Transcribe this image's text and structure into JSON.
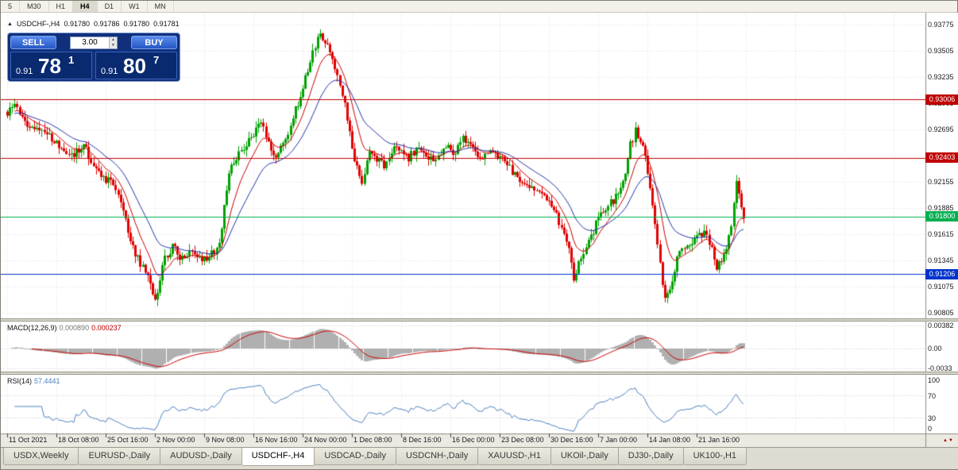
{
  "toolbar": {
    "timeframes": [
      "5",
      "M30",
      "H1",
      "H4",
      "D1",
      "W1",
      "MN"
    ],
    "active_timeframe": "H4"
  },
  "chart": {
    "symbol_label": "USDCHF-,H4",
    "ohlc": {
      "open": "0.91780",
      "high": "0.91786",
      "low": "0.91780",
      "close": "0.91781"
    },
    "trade_panel": {
      "sell_label": "SELL",
      "buy_label": "BUY",
      "volume": "3.00",
      "bid": {
        "prefix": "0.91",
        "big": "78",
        "sup": "1"
      },
      "ask": {
        "prefix": "0.91",
        "big": "80",
        "sup": "7"
      }
    },
    "price_axis": {
      "ticks": [
        "0.93775",
        "0.93505",
        "0.93235",
        "0.92965",
        "0.92695",
        "0.92425",
        "0.92155",
        "0.91885",
        "0.91615",
        "0.91345",
        "0.91075",
        "0.90805"
      ]
    },
    "levels": [
      {
        "label": "0.93006",
        "value": 0.93006,
        "color": "#c00000"
      },
      {
        "label": "0.92403",
        "value": 0.92403,
        "color": "#c00000"
      },
      {
        "label": "0.91800",
        "value": 0.918,
        "color": "#00b050"
      },
      {
        "label": "0.91206",
        "value": 0.91206,
        "color": "#0033cc"
      }
    ],
    "time_axis": {
      "labels": [
        "11 Oct 2021",
        "18 Oct 08:00",
        "25 Oct 16:00",
        "2 Nov 00:00",
        "9 Nov 08:00",
        "16 Nov 16:00",
        "24 Nov 00:00",
        "1 Dec 08:00",
        "8 Dec 16:00",
        "16 Dec 00:00",
        "23 Dec 08:00",
        "30 Dec 16:00",
        "7 Jan 00:00",
        "14 Jan 08:00",
        "21 Jan 16:00"
      ]
    }
  },
  "macd": {
    "name": "MACD(12,26,9)",
    "value1": "0.000890",
    "value2": "0.000237",
    "axis": [
      "0.00382",
      "0.00",
      "-0.0033"
    ]
  },
  "rsi": {
    "name": "RSI(14)",
    "value": "57.4441",
    "axis": [
      "100",
      "70",
      "30",
      "0"
    ]
  },
  "tabs": {
    "items": [
      "USDX,Weekly",
      "EURUSD-,Daily",
      "AUDUSD-,Daily",
      "USDCHF-,H4",
      "USDCAD-,Daily",
      "USDCNH-,Daily",
      "XAUUSD-,H1",
      "UKOil-,Daily",
      "DJ30-,Daily",
      "UK100-,H1"
    ],
    "active_index": 3
  },
  "colors": {
    "window_bg": "#ece9e2",
    "grid": "#e4e4e4",
    "candle_up": "#00a000",
    "candle_down": "#e00000",
    "ma_fast": "#cc0000",
    "ma_slow": "#2233aa",
    "macd_hist": "#b0b0b0",
    "macd_signal": "#cc0000",
    "rsi_line": "#4a7fc1",
    "separator": "#8f8c82"
  },
  "chart_data": {
    "type": "candlestick",
    "bars": 300,
    "last_close": 0.91781,
    "y_range": [
      0.9075,
      0.939
    ],
    "levels": [
      0.93006,
      0.92403,
      0.918,
      0.91206
    ],
    "indicators": {
      "overlay_ma": [
        10,
        24
      ],
      "macd": [
        12,
        26,
        9
      ],
      "rsi": 14
    },
    "price_path": [
      [
        0,
        0.9288
      ],
      [
        3,
        0.9296
      ],
      [
        8,
        0.9271
      ],
      [
        14,
        0.9266
      ],
      [
        18,
        0.9261
      ],
      [
        22,
        0.925
      ],
      [
        26,
        0.9242
      ],
      [
        31,
        0.9252
      ],
      [
        36,
        0.923
      ],
      [
        39,
        0.9221
      ],
      [
        43,
        0.9212
      ],
      [
        46,
        0.9198
      ],
      [
        50,
        0.9155
      ],
      [
        53,
        0.9136
      ],
      [
        57,
        0.9121
      ],
      [
        60,
        0.9092
      ],
      [
        63,
        0.9131
      ],
      [
        67,
        0.9149
      ],
      [
        71,
        0.9136
      ],
      [
        75,
        0.9148
      ],
      [
        79,
        0.9134
      ],
      [
        83,
        0.9142
      ],
      [
        86,
        0.9152
      ],
      [
        90,
        0.9228
      ],
      [
        95,
        0.925
      ],
      [
        99,
        0.9262
      ],
      [
        103,
        0.928
      ],
      [
        106,
        0.9256
      ],
      [
        109,
        0.9242
      ],
      [
        113,
        0.9258
      ],
      [
        117,
        0.929
      ],
      [
        120,
        0.9312
      ],
      [
        124,
        0.9348
      ],
      [
        127,
        0.9368
      ],
      [
        129,
        0.9361
      ],
      [
        131,
        0.9349
      ],
      [
        134,
        0.9322
      ],
      [
        137,
        0.9296
      ],
      [
        139,
        0.927
      ],
      [
        141,
        0.9238
      ],
      [
        144,
        0.9217
      ],
      [
        147,
        0.9247
      ],
      [
        150,
        0.9241
      ],
      [
        153,
        0.9233
      ],
      [
        157,
        0.9254
      ],
      [
        160,
        0.9246
      ],
      [
        163,
        0.924
      ],
      [
        166,
        0.925
      ],
      [
        170,
        0.9242
      ],
      [
        173,
        0.9236
      ],
      [
        176,
        0.9246
      ],
      [
        179,
        0.9252
      ],
      [
        182,
        0.9246
      ],
      [
        185,
        0.9262
      ],
      [
        188,
        0.9252
      ],
      [
        191,
        0.9241
      ],
      [
        194,
        0.9245
      ],
      [
        197,
        0.9248
      ],
      [
        200,
        0.924
      ],
      [
        204,
        0.9231
      ],
      [
        207,
        0.9219
      ],
      [
        210,
        0.9213
      ],
      [
        214,
        0.9206
      ],
      [
        218,
        0.9198
      ],
      [
        222,
        0.9187
      ],
      [
        225,
        0.9167
      ],
      [
        228,
        0.9147
      ],
      [
        230,
        0.9112
      ],
      [
        233,
        0.9139
      ],
      [
        236,
        0.9153
      ],
      [
        240,
        0.9178
      ],
      [
        243,
        0.9186
      ],
      [
        246,
        0.9197
      ],
      [
        249,
        0.9209
      ],
      [
        251,
        0.9221
      ],
      [
        253,
        0.9253
      ],
      [
        255,
        0.9268
      ],
      [
        257,
        0.9261
      ],
      [
        259,
        0.9243
      ],
      [
        261,
        0.9206
      ],
      [
        263,
        0.9171
      ],
      [
        265,
        0.9131
      ],
      [
        267,
        0.9093
      ],
      [
        269,
        0.9106
      ],
      [
        271,
        0.9127
      ],
      [
        274,
        0.9151
      ],
      [
        277,
        0.9148
      ],
      [
        280,
        0.9157
      ],
      [
        283,
        0.9162
      ],
      [
        286,
        0.9147
      ],
      [
        288,
        0.9129
      ],
      [
        290,
        0.9137
      ],
      [
        292,
        0.9147
      ],
      [
        294,
        0.9169
      ],
      [
        296,
        0.9221
      ],
      [
        297,
        0.9201
      ],
      [
        298,
        0.9187
      ],
      [
        299,
        0.9178
      ]
    ]
  }
}
